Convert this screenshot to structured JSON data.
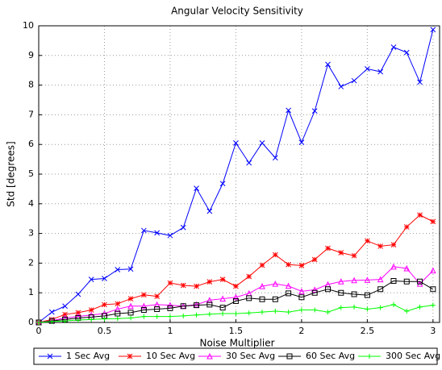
{
  "chart_data": {
    "type": "line",
    "title": "Angular Velocity Sensitivity",
    "x_label": "Noise Multiplier",
    "y_label": "Std [degrees]",
    "x": [
      0,
      0.1,
      0.2,
      0.3,
      0.4,
      0.5,
      0.6,
      0.7,
      0.8,
      0.9,
      1.0,
      1.1,
      1.2,
      1.3,
      1.4,
      1.5,
      1.6,
      1.7,
      1.8,
      1.9,
      2.0,
      2.1,
      2.2,
      2.3,
      2.4,
      2.5,
      2.6,
      2.7,
      2.8,
      2.9,
      3.0
    ],
    "xlim": [
      0,
      3.05
    ],
    "ylim": [
      0,
      10
    ],
    "xticks": [
      0,
      0.5,
      1,
      1.5,
      2,
      2.5,
      3
    ],
    "yticks": [
      0,
      1,
      2,
      3,
      4,
      5,
      6,
      7,
      8,
      9,
      10
    ],
    "grid": true,
    "series": [
      {
        "name": "1 Sec Avg",
        "color": "#0000ff",
        "marker": "x",
        "values": [
          0,
          0.35,
          0.55,
          0.95,
          1.45,
          1.48,
          1.78,
          1.8,
          3.1,
          3.02,
          2.93,
          3.2,
          4.52,
          3.75,
          4.68,
          6.05,
          5.38,
          6.05,
          5.55,
          7.15,
          6.07,
          7.13,
          8.7,
          7.95,
          8.15,
          8.55,
          8.45,
          9.28,
          9.1,
          8.1,
          9.87
        ]
      },
      {
        "name": "10 Sec Avg",
        "color": "#ff0000",
        "marker": "star",
        "values": [
          0,
          0.1,
          0.27,
          0.33,
          0.42,
          0.6,
          0.63,
          0.8,
          0.93,
          0.88,
          1.33,
          1.25,
          1.22,
          1.37,
          1.45,
          1.22,
          1.55,
          1.93,
          2.28,
          1.95,
          1.92,
          2.12,
          2.5,
          2.35,
          2.25,
          2.75,
          2.57,
          2.62,
          3.22,
          3.62,
          3.4
        ]
      },
      {
        "name": "30 Sec Avg",
        "color": "#ff00ff",
        "marker": "triangle",
        "values": [
          0,
          0.06,
          0.15,
          0.2,
          0.25,
          0.3,
          0.45,
          0.55,
          0.55,
          0.6,
          0.58,
          0.55,
          0.6,
          0.75,
          0.8,
          0.85,
          0.98,
          1.22,
          1.3,
          1.23,
          1.05,
          1.1,
          1.28,
          1.38,
          1.42,
          1.43,
          1.45,
          1.88,
          1.82,
          1.3,
          1.75
        ]
      },
      {
        "name": "60 Sec Avg",
        "color": "#000000",
        "marker": "square",
        "values": [
          0,
          0.05,
          0.1,
          0.15,
          0.18,
          0.22,
          0.3,
          0.33,
          0.42,
          0.45,
          0.48,
          0.55,
          0.58,
          0.6,
          0.5,
          0.72,
          0.82,
          0.78,
          0.78,
          0.98,
          0.85,
          1.0,
          1.12,
          1.0,
          0.95,
          0.92,
          1.12,
          1.4,
          1.38,
          1.38,
          1.12
        ]
      },
      {
        "name": "300 Sec Avg",
        "color": "#00ff00",
        "marker": "plus",
        "values": [
          0,
          0.03,
          0.05,
          0.08,
          0.1,
          0.12,
          0.13,
          0.15,
          0.2,
          0.2,
          0.2,
          0.22,
          0.25,
          0.28,
          0.3,
          0.3,
          0.32,
          0.35,
          0.38,
          0.35,
          0.42,
          0.42,
          0.35,
          0.5,
          0.52,
          0.45,
          0.5,
          0.6,
          0.38,
          0.52,
          0.58
        ]
      }
    ]
  }
}
